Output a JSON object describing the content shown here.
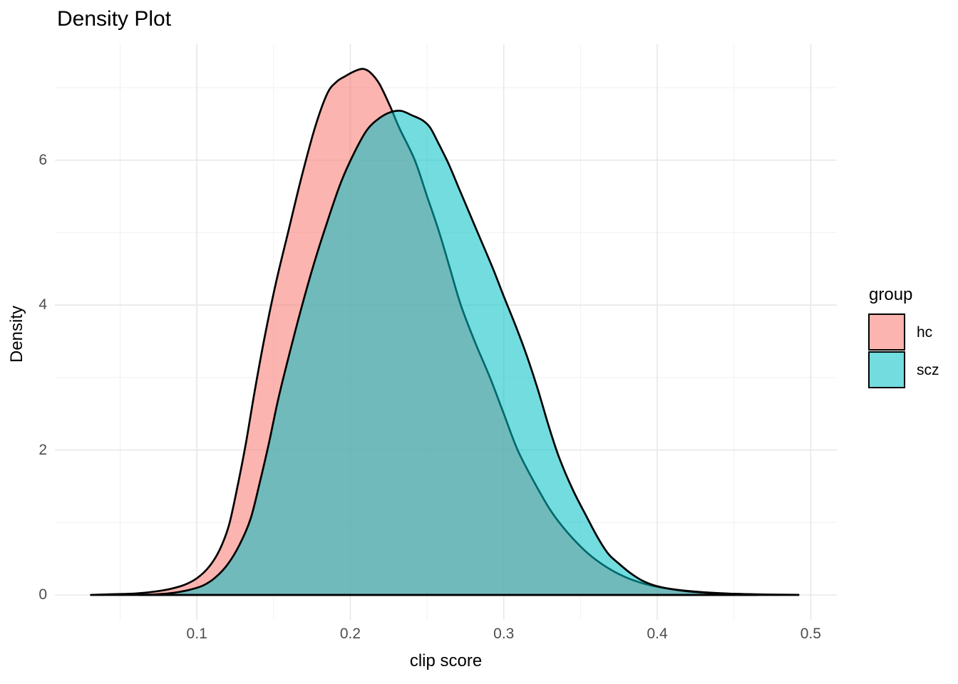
{
  "title": "Density Plot",
  "axes": {
    "x": {
      "label": "clip score",
      "ticks": [
        {
          "value": 0.1,
          "label": "0.1"
        },
        {
          "value": 0.2,
          "label": "0.2"
        },
        {
          "value": 0.3,
          "label": "0.3"
        },
        {
          "value": 0.4,
          "label": "0.4"
        },
        {
          "value": 0.5,
          "label": "0.5"
        }
      ],
      "minor_ticks": [
        0.05,
        0.15,
        0.25,
        0.35,
        0.45
      ],
      "range": [
        0.0075,
        0.517
      ]
    },
    "y": {
      "label": "Density",
      "ticks": [
        {
          "value": 0,
          "label": "0"
        },
        {
          "value": 2,
          "label": "2"
        },
        {
          "value": 4,
          "label": "4"
        },
        {
          "value": 6,
          "label": "6"
        }
      ],
      "minor_ticks": [
        1,
        3,
        5,
        7
      ],
      "range": [
        -0.344,
        7.6
      ]
    }
  },
  "legend": {
    "title": "group",
    "items": [
      {
        "label": "hc",
        "color": "#F8766D"
      },
      {
        "label": "scz",
        "color": "#00BFC4"
      }
    ]
  },
  "style": {
    "fill_opacity": 0.55,
    "stroke_color": "#000000",
    "stroke_width": 2.7,
    "grid_major_color": "#E8E8E8",
    "grid_minor_color": "#F2F2F2",
    "tick_label_color": "#4D4D4D"
  },
  "chart_data": {
    "type": "area",
    "subtype": "density",
    "title": "Density Plot",
    "xlabel": "clip score",
    "ylabel": "Density",
    "xlim": [
      0.0075,
      0.517
    ],
    "ylim": [
      -0.344,
      7.6
    ],
    "grid": true,
    "legend_position": "right",
    "legend_title": "group",
    "series": [
      {
        "name": "hc",
        "color": "#F8766D",
        "peak": {
          "x": 0.208,
          "density": 7.26
        },
        "points": [
          [
            0.031,
            0
          ],
          [
            0.045,
            0.01
          ],
          [
            0.06,
            0.02
          ],
          [
            0.072,
            0.045
          ],
          [
            0.082,
            0.08
          ],
          [
            0.092,
            0.14
          ],
          [
            0.1,
            0.23
          ],
          [
            0.108,
            0.39
          ],
          [
            0.115,
            0.63
          ],
          [
            0.121,
            0.97
          ],
          [
            0.127,
            1.55
          ],
          [
            0.132,
            2.1
          ],
          [
            0.138,
            2.85
          ],
          [
            0.145,
            3.65
          ],
          [
            0.152,
            4.35
          ],
          [
            0.16,
            5.05
          ],
          [
            0.168,
            5.75
          ],
          [
            0.177,
            6.45
          ],
          [
            0.185,
            6.92
          ],
          [
            0.191,
            7.08
          ],
          [
            0.196,
            7.15
          ],
          [
            0.202,
            7.22
          ],
          [
            0.208,
            7.26
          ],
          [
            0.213,
            7.21
          ],
          [
            0.219,
            7.05
          ],
          [
            0.226,
            6.74
          ],
          [
            0.232,
            6.44
          ],
          [
            0.242,
            6.0
          ],
          [
            0.25,
            5.5
          ],
          [
            0.258,
            5.0
          ],
          [
            0.265,
            4.5
          ],
          [
            0.272,
            4.0
          ],
          [
            0.281,
            3.5
          ],
          [
            0.291,
            3.0
          ],
          [
            0.3,
            2.5
          ],
          [
            0.309,
            2.0
          ],
          [
            0.32,
            1.55
          ],
          [
            0.331,
            1.15
          ],
          [
            0.342,
            0.85
          ],
          [
            0.355,
            0.57
          ],
          [
            0.368,
            0.37
          ],
          [
            0.381,
            0.23
          ],
          [
            0.396,
            0.13
          ],
          [
            0.413,
            0.07
          ],
          [
            0.428,
            0.04
          ],
          [
            0.445,
            0.02
          ],
          [
            0.458,
            0.01
          ],
          [
            0.465,
            0.005
          ]
        ]
      },
      {
        "name": "scz",
        "color": "#00BFC4",
        "peak": {
          "x": 0.233,
          "density": 6.68
        },
        "points": [
          [
            0.063,
            0
          ],
          [
            0.075,
            0.01
          ],
          [
            0.085,
            0.03
          ],
          [
            0.095,
            0.07
          ],
          [
            0.104,
            0.13
          ],
          [
            0.112,
            0.24
          ],
          [
            0.12,
            0.42
          ],
          [
            0.128,
            0.7
          ],
          [
            0.135,
            1.05
          ],
          [
            0.141,
            1.55
          ],
          [
            0.147,
            2.1
          ],
          [
            0.153,
            2.7
          ],
          [
            0.16,
            3.3
          ],
          [
            0.168,
            3.95
          ],
          [
            0.176,
            4.55
          ],
          [
            0.185,
            5.15
          ],
          [
            0.194,
            5.7
          ],
          [
            0.203,
            6.12
          ],
          [
            0.211,
            6.42
          ],
          [
            0.219,
            6.58
          ],
          [
            0.226,
            6.66
          ],
          [
            0.233,
            6.68
          ],
          [
            0.24,
            6.62
          ],
          [
            0.247,
            6.55
          ],
          [
            0.252,
            6.45
          ],
          [
            0.257,
            6.25
          ],
          [
            0.264,
            5.95
          ],
          [
            0.271,
            5.6
          ],
          [
            0.278,
            5.25
          ],
          [
            0.285,
            4.9
          ],
          [
            0.293,
            4.5
          ],
          [
            0.3,
            4.12
          ],
          [
            0.308,
            3.7
          ],
          [
            0.315,
            3.3
          ],
          [
            0.322,
            2.85
          ],
          [
            0.329,
            2.35
          ],
          [
            0.336,
            1.9
          ],
          [
            0.345,
            1.45
          ],
          [
            0.354,
            1.08
          ],
          [
            0.361,
            0.8
          ],
          [
            0.368,
            0.57
          ],
          [
            0.374,
            0.45
          ],
          [
            0.382,
            0.31
          ],
          [
            0.39,
            0.2
          ],
          [
            0.4,
            0.12
          ],
          [
            0.416,
            0.06
          ],
          [
            0.432,
            0.03
          ],
          [
            0.45,
            0.015
          ],
          [
            0.47,
            0.006
          ],
          [
            0.492,
            0.002
          ]
        ]
      }
    ]
  }
}
